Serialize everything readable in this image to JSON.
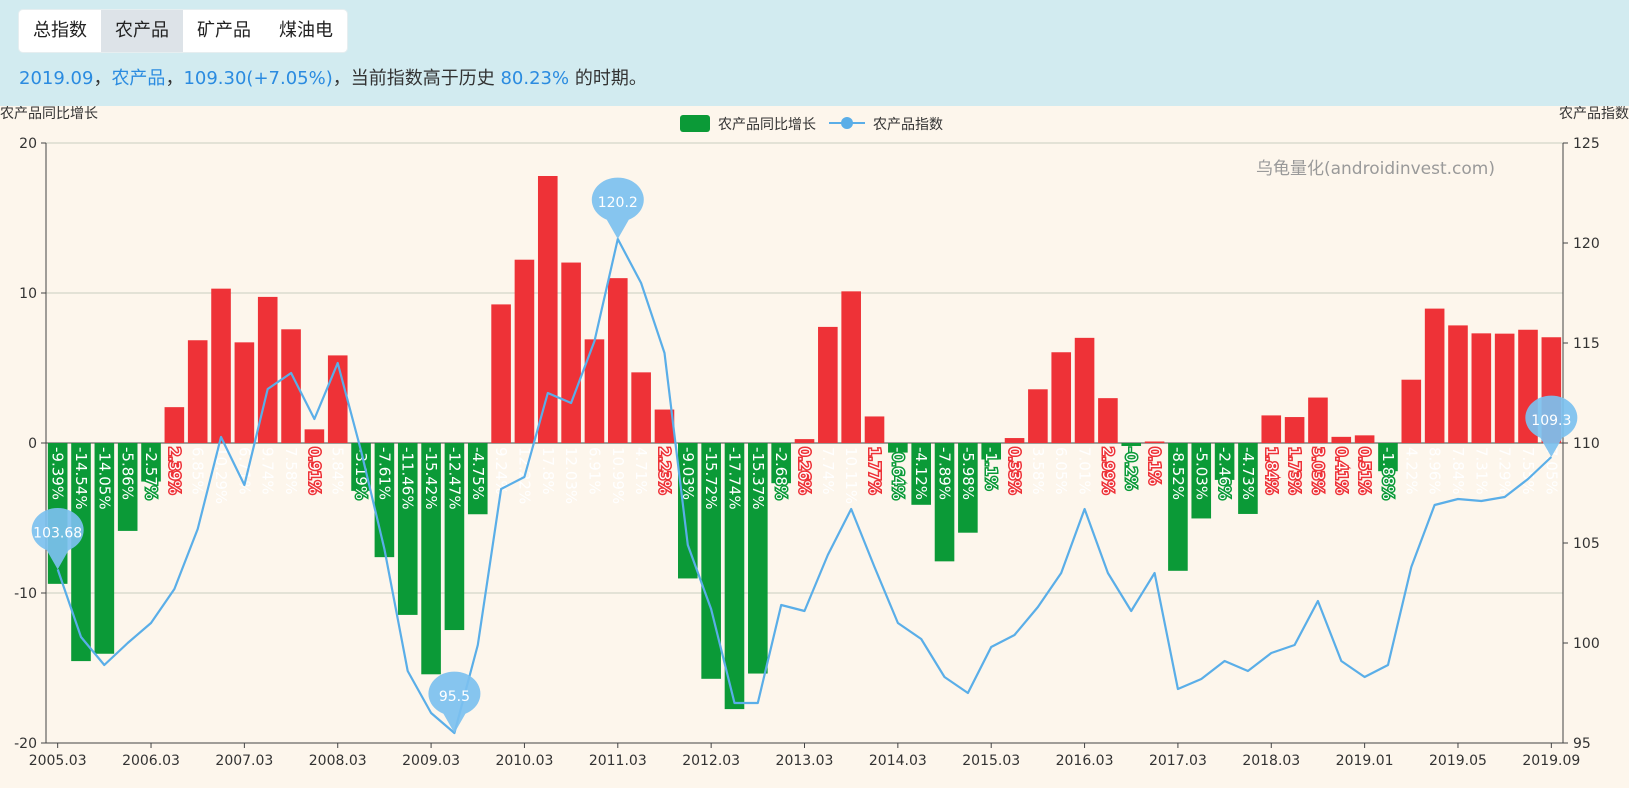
{
  "tabs": [
    "总指数",
    "农产品",
    "矿产品",
    "煤油电"
  ],
  "active_tab": 1,
  "status": {
    "date": "2019.09",
    "sep1": "，",
    "category": "农产品",
    "sep2": "，",
    "index_value": "109.30(+7.05%)",
    "sep3": "，",
    "text_before": "当前指数高于历史",
    "percentile": "80.23%",
    "text_after": "的时期。"
  },
  "colors": {
    "positive_bar": "#ee3237",
    "negative_bar": "#0b9a37",
    "index_line": "#5aaee8",
    "marker": "#7cc0ef"
  },
  "chart_data": {
    "type": "bar+line",
    "watermark": "乌龟量化(androidinvest.com)",
    "left_axis_label": "农产品同比增长",
    "right_axis_label": "农产品指数",
    "left_ylim": [
      -20,
      20
    ],
    "left_ticks": [
      20,
      10,
      0,
      -10,
      -20
    ],
    "right_ylim": [
      95,
      125
    ],
    "right_ticks": [
      125,
      120,
      115,
      110,
      105,
      100,
      95
    ],
    "x_tick_labels": [
      "2005.03",
      "2006.03",
      "2007.03",
      "2008.03",
      "2009.03",
      "2010.03",
      "2011.03",
      "2012.03",
      "2013.03",
      "2014.03",
      "2015.03",
      "2016.03",
      "2017.03",
      "2018.03",
      "2019.01",
      "2019.05",
      "2019.09"
    ],
    "grid": true,
    "legend_position": "top-center",
    "series": [
      {
        "name": "农产品同比增长",
        "type": "bar",
        "values": [
          -9.39,
          -14.54,
          -14.05,
          -5.86,
          -2.57,
          2.39,
          6.85,
          10.29,
          6.71,
          9.74,
          7.58,
          0.91,
          5.84,
          -3.19,
          -7.61,
          -11.46,
          -15.42,
          -12.47,
          -4.75,
          9.24,
          12.22,
          17.8,
          12.03,
          6.91,
          10.99,
          4.71,
          2.23,
          -9.03,
          -15.72,
          -17.74,
          -15.37,
          -2.68,
          0.26,
          7.74,
          10.11,
          1.77,
          -0.64,
          -4.12,
          -7.89,
          -5.98,
          -1.1,
          0.33,
          3.58,
          6.05,
          7.01,
          2.99,
          -0.2,
          0.1,
          -8.52,
          -5.03,
          -2.46,
          -4.73,
          1.84,
          1.73,
          3.03,
          0.41,
          0.51,
          -1.88,
          4.22,
          8.96,
          7.84,
          7.31,
          7.29,
          7.55,
          7.05
        ],
        "labels": [
          "-9.39%",
          "-14.54%",
          "-14.05%",
          "-5.86%",
          "-2.57%",
          "2.39%",
          "6.85%",
          "10.29%",
          "6.71%",
          "9.74%",
          "7.58%",
          "0.91%",
          "5.84%",
          "-3.19%",
          "-7.61%",
          "-11.46%",
          "-15.42%",
          "-12.47%",
          "-4.75%",
          "9.24%",
          "12.22%",
          "17.8%",
          "12.03%",
          "6.91%",
          "10.99%",
          "4.71%",
          "2.23%",
          "-9.03%",
          "-15.72%",
          "-17.74%",
          "-15.37%",
          "-2.68%",
          "0.26%",
          "7.74%",
          "10.11%",
          "1.77%",
          "-0.64%",
          "-4.12%",
          "-7.89%",
          "-5.98%",
          "-1.1%",
          "0.33%",
          "3.58%",
          "6.05%",
          "7.01%",
          "2.99%",
          "-0.2%",
          "0.1%",
          "-8.52%",
          "-5.03%",
          "-2.46%",
          "-4.73%",
          "1.84%",
          "1.73%",
          "3.03%",
          "0.41%",
          "0.51%",
          "-1.88%",
          "4.22%",
          "8.96%",
          "7.84%",
          "7.31%",
          "7.29%",
          "7.55%",
          "7.05%"
        ]
      },
      {
        "name": "农产品指数",
        "type": "line",
        "values": [
          103.68,
          100.3,
          98.9,
          100.0,
          101.0,
          102.7,
          105.7,
          110.3,
          107.9,
          112.7,
          113.5,
          111.2,
          114.0,
          109.6,
          104.7,
          98.6,
          96.5,
          95.5,
          99.9,
          107.7,
          108.3,
          112.5,
          112.0,
          115.1,
          120.2,
          118.0,
          114.5,
          104.9,
          101.7,
          97.0,
          97.0,
          101.9,
          101.6,
          104.4,
          106.7,
          103.8,
          101.0,
          100.2,
          98.3,
          97.5,
          99.8,
          100.4,
          101.8,
          103.5,
          106.7,
          103.5,
          101.6,
          103.5,
          97.7,
          98.2,
          99.1,
          98.6,
          99.5,
          99.9,
          102.1,
          99.1,
          98.3,
          98.9,
          103.8,
          106.9,
          107.2,
          107.1,
          107.3,
          108.2,
          109.3
        ],
        "markers": [
          {
            "label": "103.68",
            "index": 0,
            "value": 103.68
          },
          {
            "label": "120.2",
            "index": 24,
            "value": 120.2
          },
          {
            "label": "95.5",
            "index": 17,
            "value": 95.5
          },
          {
            "label": "109.3",
            "index": 64,
            "value": 109.3
          }
        ]
      }
    ]
  }
}
